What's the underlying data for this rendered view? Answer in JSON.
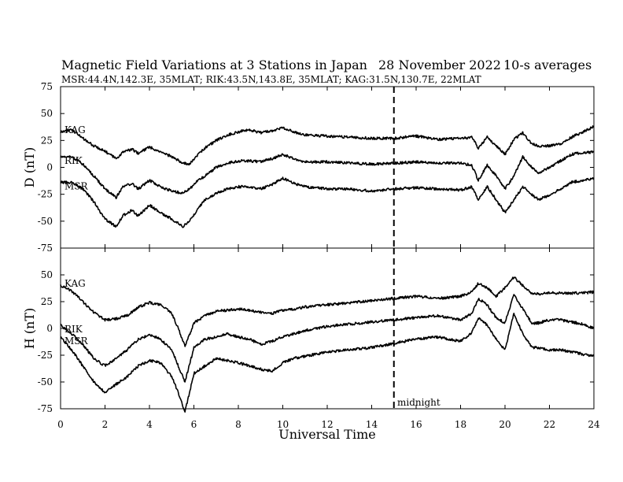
{
  "header": {
    "title": "Magnetic Field Variations at 3 Stations in Japan",
    "date": "28 November 2022",
    "averaging": "10-s averages",
    "stations_info": "MSR:44.4N,142.3E, 35MLAT;  RIK:43.5N,143.8E, 35MLAT;  KAG:31.5N,130.7E, 22MLAT"
  },
  "chart_data": [
    {
      "type": "line",
      "panel": "top",
      "ylabel": "D (nT)",
      "xlabel": "",
      "xlim": [
        0,
        24
      ],
      "ylim": [
        -75,
        75
      ],
      "yticks": [
        -75,
        -50,
        -25,
        0,
        25,
        50,
        75
      ],
      "xticks": [
        0,
        2,
        4,
        6,
        8,
        10,
        12,
        14,
        16,
        18,
        20,
        22,
        24
      ],
      "grid": false,
      "series": [
        {
          "name": "KAG",
          "x": [
            0,
            0.5,
            1,
            1.5,
            2,
            2.5,
            2.8,
            3.2,
            3.5,
            4,
            4.5,
            5,
            5.5,
            5.8,
            6.2,
            6.5,
            7,
            7.5,
            8,
            8.5,
            9,
            9.5,
            10,
            10.5,
            11,
            12,
            13,
            14,
            15,
            16,
            17,
            18,
            18.5,
            18.8,
            19.2,
            19.6,
            20,
            20.4,
            20.8,
            21.2,
            21.5,
            22,
            22.5,
            23,
            23.5,
            24
          ],
          "values": [
            33,
            35,
            27,
            20,
            15,
            8,
            14,
            17,
            13,
            19,
            14,
            10,
            4,
            3,
            12,
            18,
            25,
            30,
            33,
            35,
            32,
            34,
            37,
            33,
            30,
            29,
            28,
            27,
            27,
            29,
            26,
            27,
            28,
            18,
            28,
            20,
            12,
            26,
            32,
            22,
            20,
            20,
            22,
            28,
            33,
            38
          ]
        },
        {
          "name": "RIK",
          "x": [
            0,
            0.5,
            1,
            1.5,
            2,
            2.5,
            2.8,
            3.2,
            3.5,
            4,
            4.5,
            5,
            5.5,
            5.8,
            6.2,
            6.5,
            7,
            7.5,
            8,
            8.5,
            9,
            9.5,
            10,
            10.5,
            11,
            12,
            13,
            14,
            15,
            16,
            17,
            18,
            18.5,
            18.8,
            19.2,
            19.6,
            20,
            20.4,
            20.8,
            21.2,
            21.5,
            22,
            22.5,
            23,
            23.5,
            24
          ],
          "values": [
            10,
            10,
            3,
            -8,
            -20,
            -28,
            -18,
            -15,
            -20,
            -12,
            -18,
            -22,
            -24,
            -20,
            -12,
            -8,
            0,
            4,
            6,
            6,
            5,
            8,
            12,
            8,
            5,
            5,
            4,
            3,
            4,
            5,
            4,
            4,
            2,
            -12,
            2,
            -8,
            -20,
            -8,
            10,
            0,
            -5,
            0,
            6,
            12,
            14,
            14
          ]
        },
        {
          "name": "MSR",
          "x": [
            0,
            0.5,
            1,
            1.5,
            2,
            2.5,
            2.8,
            3.2,
            3.5,
            4,
            4.5,
            5,
            5.5,
            5.8,
            6.2,
            6.5,
            7,
            7.5,
            8,
            8.5,
            9,
            9.5,
            10,
            10.5,
            11,
            12,
            13,
            14,
            15,
            16,
            17,
            18,
            18.5,
            18.8,
            19.2,
            19.6,
            20,
            20.4,
            20.8,
            21.2,
            21.5,
            22,
            22.5,
            23,
            23.5,
            24
          ],
          "values": [
            -14,
            -14,
            -20,
            -32,
            -48,
            -55,
            -45,
            -40,
            -45,
            -35,
            -42,
            -48,
            -55,
            -50,
            -38,
            -30,
            -24,
            -20,
            -18,
            -18,
            -20,
            -16,
            -10,
            -15,
            -18,
            -20,
            -20,
            -22,
            -20,
            -19,
            -20,
            -21,
            -18,
            -30,
            -18,
            -30,
            -42,
            -30,
            -18,
            -25,
            -30,
            -26,
            -20,
            -14,
            -12,
            -10
          ]
        }
      ]
    },
    {
      "type": "line",
      "panel": "bottom",
      "ylabel": "H (nT)",
      "xlabel": "Universal Time",
      "xlim": [
        0,
        24
      ],
      "ylim": [
        -75,
        75
      ],
      "yticks": [
        -75,
        -50,
        -25,
        0,
        25,
        50
      ],
      "xticks": [
        0,
        2,
        4,
        6,
        8,
        10,
        12,
        14,
        16,
        18,
        20,
        22,
        24
      ],
      "grid": false,
      "series": [
        {
          "name": "KAG",
          "x": [
            0,
            0.5,
            1,
            1.5,
            2,
            2.5,
            3,
            3.5,
            4,
            4.5,
            5,
            5.3,
            5.6,
            6,
            6.5,
            7,
            7.5,
            8,
            8.5,
            9,
            9.5,
            10,
            10.5,
            11,
            12,
            13,
            14,
            15,
            16,
            17,
            18,
            18.5,
            18.8,
            19.2,
            19.6,
            20,
            20.4,
            20.8,
            21.2,
            21.5,
            22,
            22.5,
            23,
            23.5,
            24
          ],
          "values": [
            40,
            35,
            25,
            15,
            8,
            9,
            12,
            20,
            24,
            22,
            14,
            0,
            -17,
            5,
            12,
            16,
            17,
            18,
            17,
            15,
            14,
            17,
            18,
            20,
            22,
            24,
            26,
            28,
            30,
            28,
            30,
            34,
            42,
            38,
            30,
            38,
            48,
            40,
            33,
            32,
            33,
            33,
            33,
            33,
            34
          ]
        },
        {
          "name": "RIK",
          "x": [
            0,
            0.5,
            1,
            1.5,
            2,
            2.5,
            3,
            3.5,
            4,
            4.5,
            5,
            5.3,
            5.6,
            6,
            6.5,
            7,
            7.5,
            8,
            8.5,
            9,
            9.5,
            10,
            10.5,
            11,
            12,
            13,
            14,
            15,
            16,
            17,
            18,
            18.5,
            18.8,
            19.2,
            19.6,
            20,
            20.4,
            20.8,
            21.2,
            21.5,
            22,
            22.5,
            23,
            23.5,
            24
          ],
          "values": [
            3,
            -5,
            -15,
            -28,
            -35,
            -28,
            -20,
            -10,
            -6,
            -10,
            -20,
            -35,
            -50,
            -18,
            -10,
            -8,
            -5,
            -8,
            -10,
            -15,
            -12,
            -8,
            -5,
            -2,
            2,
            4,
            6,
            8,
            10,
            12,
            8,
            14,
            28,
            22,
            10,
            5,
            32,
            18,
            5,
            5,
            8,
            8,
            6,
            4,
            0
          ]
        },
        {
          "name": "MSR",
          "x": [
            0,
            0.5,
            1,
            1.5,
            2,
            2.5,
            3,
            3.5,
            4,
            4.5,
            5,
            5.3,
            5.6,
            6,
            6.5,
            7,
            7.5,
            8,
            8.5,
            9,
            9.5,
            10,
            10.5,
            11,
            12,
            13,
            14,
            15,
            16,
            17,
            18,
            18.5,
            18.8,
            19.2,
            19.6,
            20,
            20.4,
            20.8,
            21.2,
            21.5,
            22,
            22.5,
            23,
            23.5,
            24
          ],
          "values": [
            -8,
            -20,
            -35,
            -50,
            -60,
            -52,
            -45,
            -35,
            -30,
            -32,
            -45,
            -60,
            -78,
            -42,
            -35,
            -28,
            -30,
            -32,
            -35,
            -38,
            -40,
            -32,
            -28,
            -26,
            -22,
            -20,
            -18,
            -14,
            -10,
            -8,
            -12,
            -4,
            10,
            3,
            -10,
            -20,
            14,
            -5,
            -18,
            -18,
            -20,
            -20,
            -22,
            -24,
            -26
          ]
        }
      ]
    }
  ],
  "annotations": {
    "midnight_label": "midnight",
    "midnight_ut": 15,
    "station_labels": [
      "KAG",
      "RIK",
      "MSR"
    ]
  }
}
